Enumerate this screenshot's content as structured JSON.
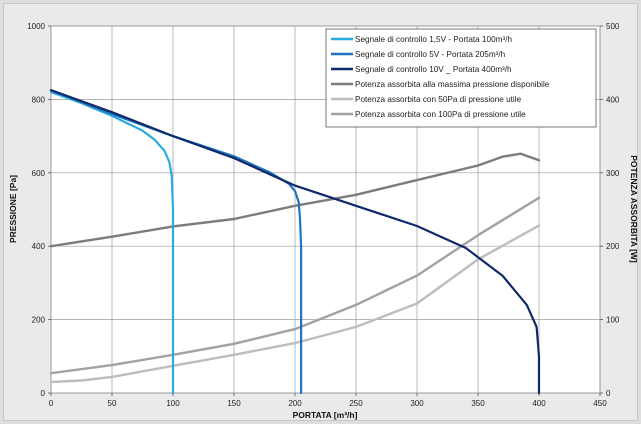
{
  "chart_data": {
    "type": "line",
    "xlabel": "PORTATA [m³/h]",
    "ylabel": "PRESSIONE [Pa]",
    "y2label": "POTENZA ASSORBITA [W]",
    "xlim": [
      0,
      450
    ],
    "ylim": [
      0,
      1000
    ],
    "y2lim": [
      0,
      500
    ],
    "x_ticks": [
      "0",
      "50",
      "100",
      "150",
      "200",
      "250",
      "300",
      "350",
      "400",
      "450"
    ],
    "y_ticks": [
      "0",
      "200",
      "400",
      "600",
      "800",
      "1000"
    ],
    "y2_ticks": [
      "0",
      "100",
      "200",
      "300",
      "400",
      "500"
    ],
    "grid": true,
    "legend_position": "top-right",
    "series": [
      {
        "name": "Segnale di controllo 1,5V - Portata 100m³/h",
        "axis": "left",
        "color": "#29abe2",
        "x": [
          0,
          25,
          50,
          75,
          85,
          93,
          97,
          99,
          100,
          100
        ],
        "y": [
          820,
          790,
          755,
          715,
          690,
          660,
          630,
          590,
          500,
          0
        ]
      },
      {
        "name": "Segnale di controllo 5V - Portata 205m³/h",
        "axis": "left",
        "color": "#1f73c0",
        "x": [
          0,
          50,
          100,
          150,
          180,
          195,
          200,
          203,
          204,
          205,
          205
        ],
        "y": [
          825,
          760,
          700,
          645,
          600,
          570,
          550,
          520,
          480,
          400,
          0
        ]
      },
      {
        "name": "Segnale di controllo 10V _ Portata 400m³/h",
        "axis": "left",
        "color": "#0f2a6b",
        "x": [
          0,
          50,
          100,
          150,
          200,
          250,
          300,
          340,
          370,
          390,
          398,
          400,
          400
        ],
        "y": [
          825,
          765,
          700,
          640,
          565,
          510,
          455,
          395,
          320,
          240,
          180,
          100,
          0
        ]
      },
      {
        "name": "Potenza assorbita alla massima pressione disponibile",
        "axis": "right",
        "color": "#7c7c7c",
        "x": [
          0,
          50,
          100,
          150,
          200,
          250,
          300,
          350,
          370,
          385,
          400
        ],
        "y": [
          200,
          213,
          227,
          237,
          255,
          270,
          290,
          310,
          322,
          326,
          317
        ]
      },
      {
        "name": "Potenza assorbita con 50Pa di pressione utile",
        "axis": "right",
        "color": "#bdbdbd",
        "x": [
          0,
          25,
          50,
          100,
          150,
          200,
          250,
          300,
          350,
          400
        ],
        "y": [
          15,
          17,
          22,
          37,
          52,
          68,
          90,
          122,
          182,
          228
        ]
      },
      {
        "name": "Potenza assorbita con 100Pa di pressione utile",
        "axis": "right",
        "color": "#a2a2a2",
        "x": [
          0,
          50,
          100,
          150,
          200,
          250,
          300,
          350,
          400
        ],
        "y": [
          27,
          38,
          52,
          67,
          87,
          120,
          160,
          215,
          266
        ]
      }
    ]
  }
}
